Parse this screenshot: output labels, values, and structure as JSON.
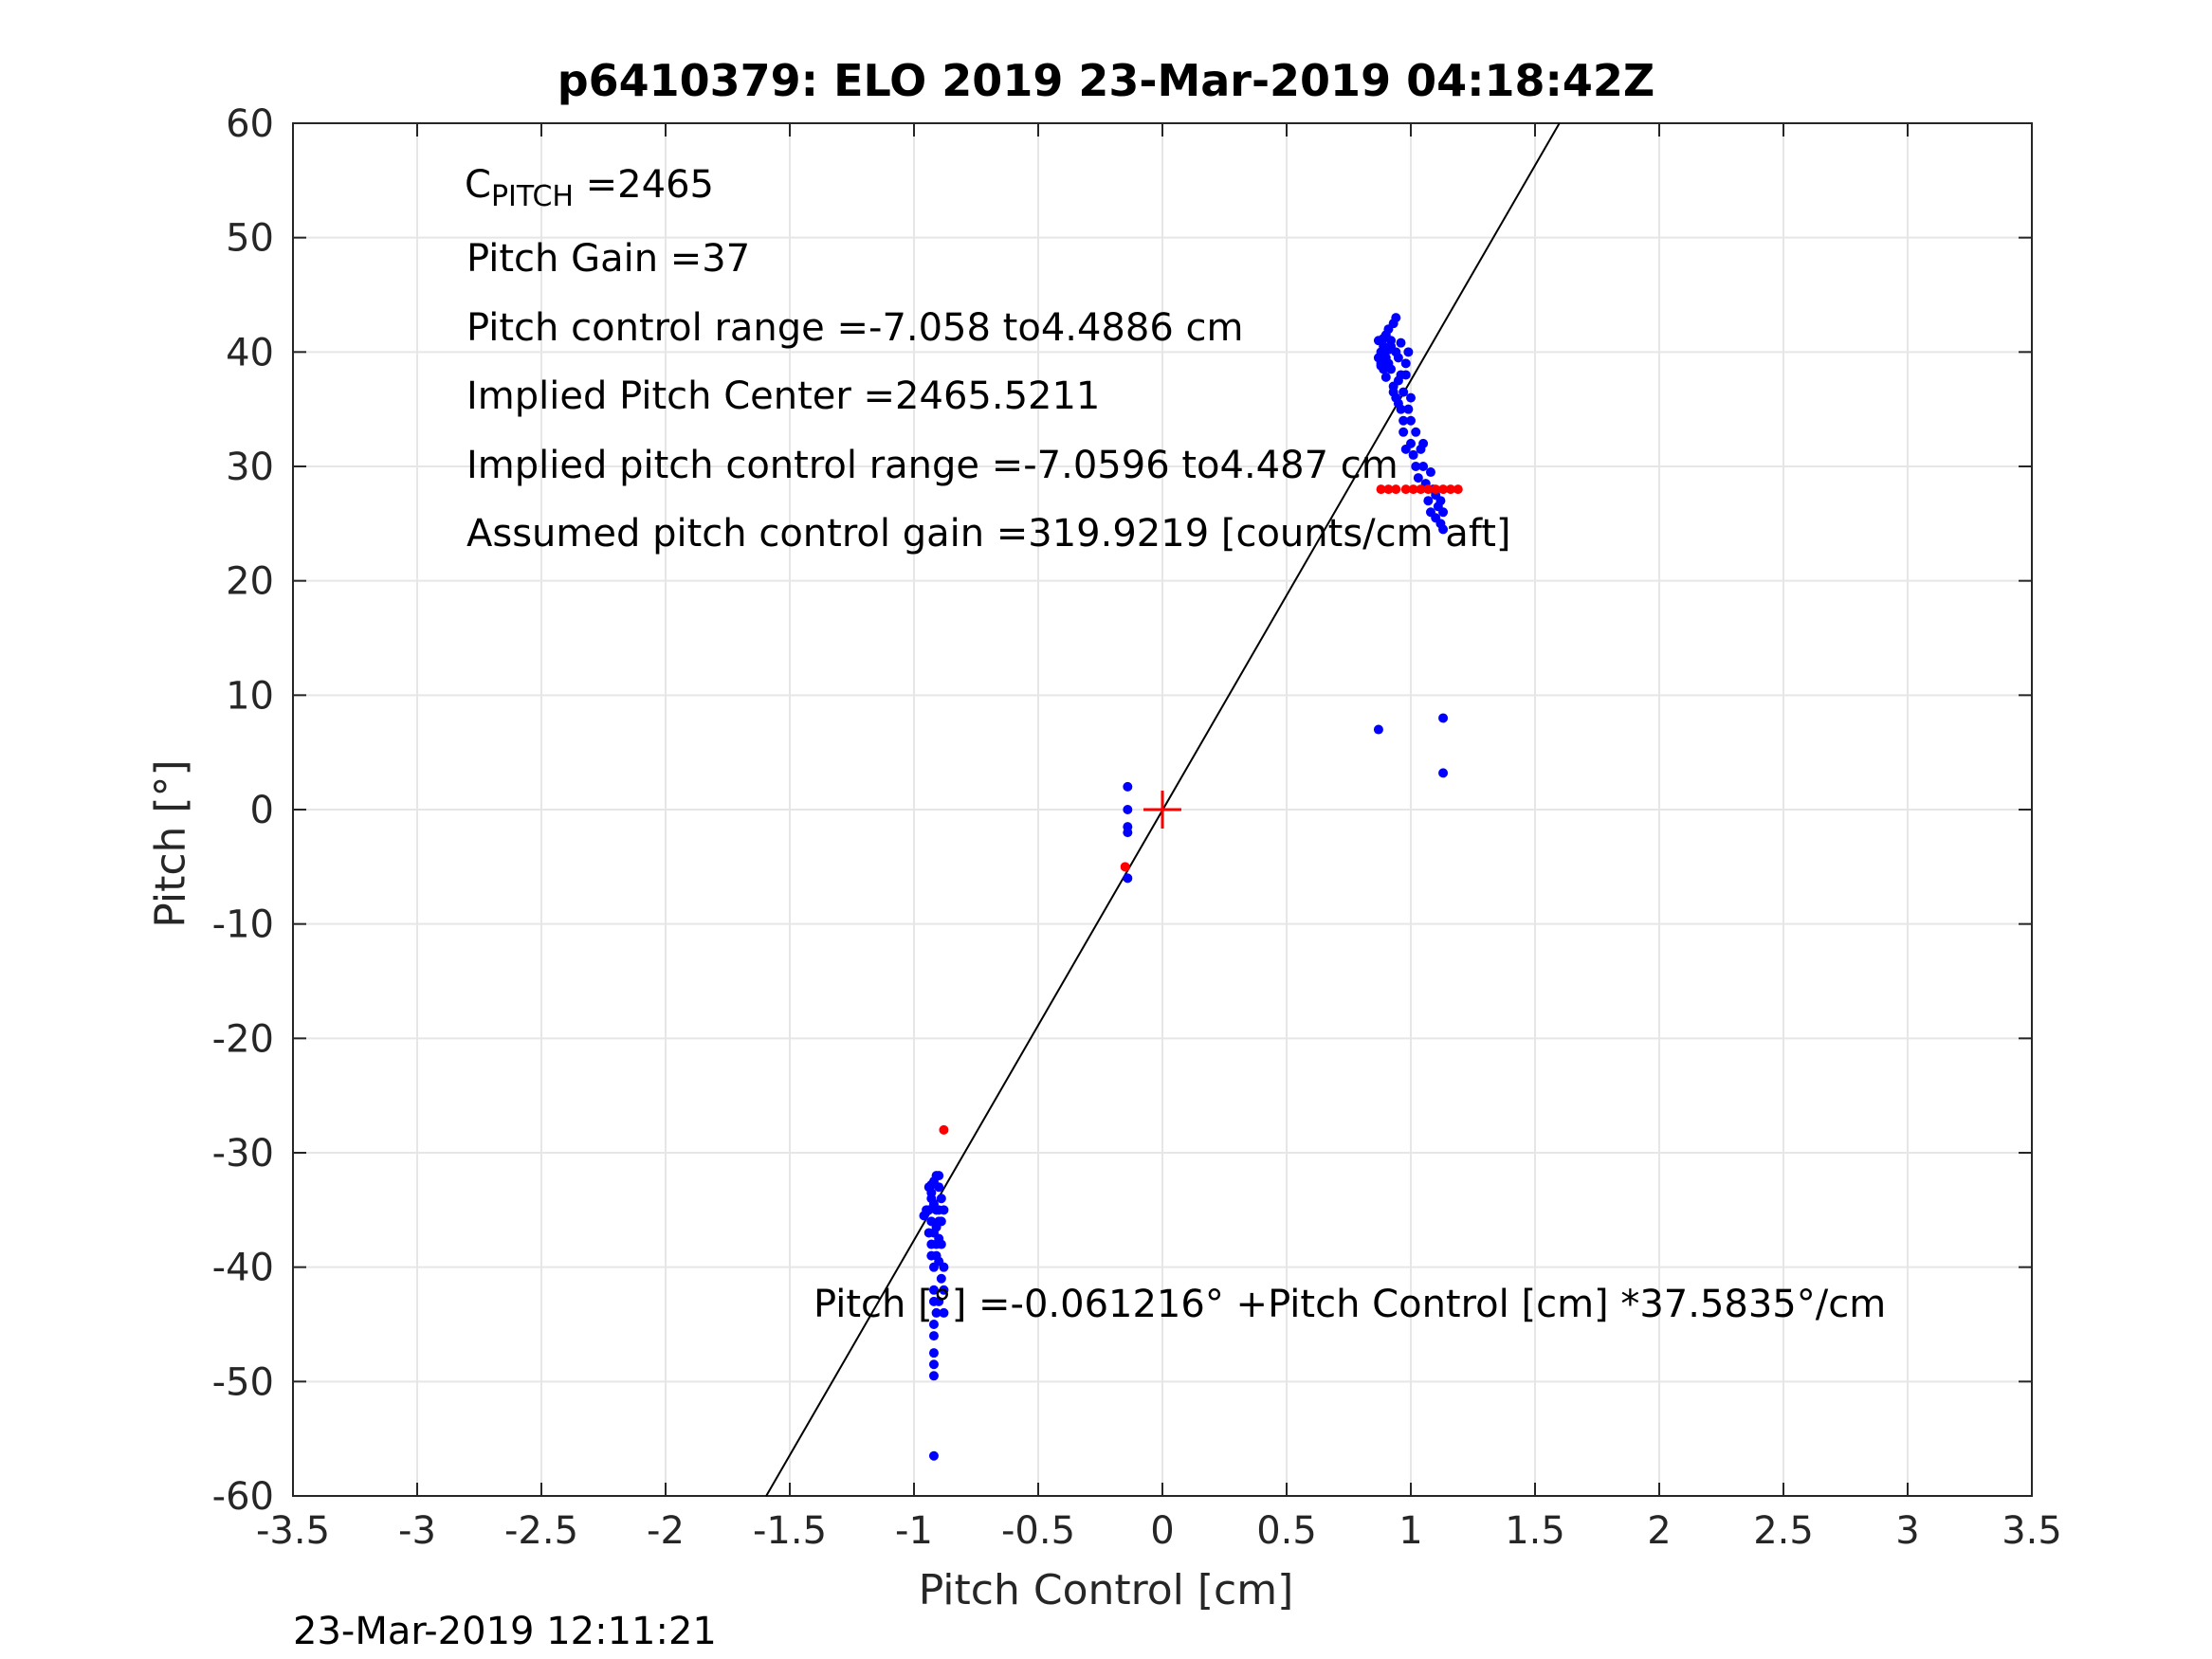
{
  "title": "p6410379: ELO 2019 23-Mar-2019 04:18:42Z",
  "xlabel": "Pitch Control [cm]",
  "ylabel": "Pitch [°]",
  "timestamp": "23-Mar-2019 12:11:21",
  "annotations": {
    "cpitch_main": "C",
    "cpitch_sub": "PITCH",
    "cpitch_value": " =2465",
    "pitch_gain": "Pitch Gain =37",
    "control_range": "Pitch control range =-7.058 to4.4886 cm",
    "implied_center": "Implied Pitch Center =2465.5211",
    "implied_range": "Implied pitch control range =-7.0596 to4.487 cm",
    "assumed_gain": "Assumed pitch control gain =319.9219 [counts/cm aft]",
    "fit_equation": "Pitch [°] =-0.061216° +Pitch Control [cm] *37.5835°/cm"
  },
  "colors": {
    "blue_points": "#0000ff",
    "red_points": "#ff0000",
    "fit_line": "#000000",
    "grid": "#e6e6e6"
  },
  "chart_data": {
    "type": "scatter",
    "xlim": [
      -3.5,
      3.5
    ],
    "ylim": [
      -60,
      60
    ],
    "grid": true,
    "xticks": [
      "-3.5",
      "-3",
      "-2.5",
      "-2",
      "-1.5",
      "-1",
      "-0.5",
      "0",
      "0.5",
      "1",
      "1.5",
      "2",
      "2.5",
      "3",
      "3.5"
    ],
    "yticks": [
      "60",
      "50",
      "40",
      "30",
      "20",
      "10",
      "0",
      "-10",
      "-20",
      "-30",
      "-40",
      "-50",
      "-60"
    ],
    "fit_line": {
      "intercept": -0.061216,
      "slope": 37.5835
    },
    "center_marker": {
      "x": 0,
      "y": 0
    },
    "series": [
      {
        "color": "#0000ff",
        "points": [
          [
            -0.94,
            -33
          ],
          [
            -0.93,
            -34
          ],
          [
            -0.92,
            -32.5
          ],
          [
            -0.91,
            -35
          ],
          [
            -0.93,
            -36
          ],
          [
            -0.92,
            -37
          ],
          [
            -0.91,
            -38
          ],
          [
            -0.93,
            -39
          ],
          [
            -0.92,
            -40
          ],
          [
            -0.94,
            -35
          ],
          [
            -0.95,
            -35
          ],
          [
            -0.96,
            -35.5
          ],
          [
            -0.9,
            -33
          ],
          [
            -0.9,
            -36
          ],
          [
            -0.89,
            -34
          ],
          [
            -0.89,
            -38
          ],
          [
            -0.88,
            -40
          ],
          [
            -0.88,
            -42
          ],
          [
            -0.88,
            -44
          ],
          [
            -0.89,
            -41
          ],
          [
            -0.9,
            -43
          ],
          [
            -0.91,
            -44
          ],
          [
            -0.92,
            -45
          ],
          [
            -0.92,
            -46
          ],
          [
            -0.92,
            -47.5
          ],
          [
            -0.92,
            -48.5
          ],
          [
            -0.92,
            -49.5
          ],
          [
            -0.91,
            -32
          ],
          [
            -0.9,
            -32
          ],
          [
            -0.93,
            -33.5
          ],
          [
            -0.92,
            -34.5
          ],
          [
            -0.91,
            -36.5
          ],
          [
            -0.9,
            -37.5
          ],
          [
            -0.93,
            -38
          ],
          [
            -0.94,
            -37
          ],
          [
            -0.92,
            -42
          ],
          [
            -0.92,
            -56.5
          ],
          [
            -0.93,
            -32.8
          ],
          [
            -0.9,
            -35
          ],
          [
            -0.91,
            -39
          ],
          [
            -0.89,
            -36
          ],
          [
            -0.88,
            -35
          ],
          [
            -0.92,
            -43
          ],
          [
            -0.9,
            -39.5
          ],
          [
            -0.14,
            2
          ],
          [
            -0.14,
            0
          ],
          [
            -0.14,
            -1.5
          ],
          [
            -0.14,
            -2
          ],
          [
            -0.14,
            -6
          ],
          [
            0.87,
            7
          ],
          [
            1.13,
            8
          ],
          [
            1.13,
            3.2
          ],
          [
            0.87,
            41
          ],
          [
            0.88,
            40
          ],
          [
            0.88,
            39
          ],
          [
            0.89,
            38.5
          ],
          [
            0.9,
            41.5
          ],
          [
            0.91,
            42
          ],
          [
            0.92,
            40.5
          ],
          [
            0.93,
            42.5
          ],
          [
            0.94,
            43
          ],
          [
            0.9,
            39.5
          ],
          [
            0.92,
            38.5
          ],
          [
            0.93,
            37
          ],
          [
            0.94,
            36
          ],
          [
            0.95,
            37.5
          ],
          [
            0.96,
            35
          ],
          [
            0.97,
            34
          ],
          [
            0.98,
            39
          ],
          [
            0.99,
            40
          ],
          [
            0.97,
            33
          ],
          [
            0.98,
            31.5
          ],
          [
            1.0,
            32
          ],
          [
            1.01,
            31
          ],
          [
            1.02,
            30
          ],
          [
            1.03,
            29
          ],
          [
            1.04,
            31.5
          ],
          [
            1.05,
            30
          ],
          [
            1.06,
            28.5
          ],
          [
            1.07,
            27
          ],
          [
            1.08,
            26
          ],
          [
            1.09,
            28
          ],
          [
            1.1,
            27.5
          ],
          [
            1.11,
            26.5
          ],
          [
            1.12,
            25
          ],
          [
            1.13,
            26
          ],
          [
            1.13,
            24.5
          ],
          [
            1.12,
            27
          ],
          [
            0.89,
            40.5
          ],
          [
            0.91,
            39
          ],
          [
            0.95,
            39.5
          ],
          [
            0.96,
            38
          ],
          [
            0.97,
            36.5
          ],
          [
            1.0,
            36
          ],
          [
            0.88,
            38.8
          ],
          [
            0.9,
            37.8
          ],
          [
            0.92,
            41
          ],
          [
            0.94,
            40
          ],
          [
            0.96,
            40.8
          ],
          [
            0.98,
            38
          ],
          [
            0.99,
            35
          ],
          [
            1.0,
            34
          ],
          [
            1.02,
            33
          ],
          [
            1.05,
            32
          ],
          [
            1.08,
            29.5
          ],
          [
            1.1,
            25.5
          ],
          [
            0.93,
            36.5
          ],
          [
            0.95,
            35.5
          ],
          [
            0.91,
            40.2
          ],
          [
            0.89,
            41.2
          ],
          [
            0.87,
            39.5
          ]
        ]
      },
      {
        "color": "#ff0000",
        "points": [
          [
            -0.88,
            -28
          ],
          [
            -0.15,
            -5
          ],
          [
            0.88,
            28
          ],
          [
            0.91,
            28
          ],
          [
            0.94,
            28
          ],
          [
            0.98,
            28
          ],
          [
            1.01,
            28
          ],
          [
            1.04,
            28
          ],
          [
            1.07,
            28
          ],
          [
            1.1,
            28
          ],
          [
            1.13,
            28
          ],
          [
            1.16,
            28
          ],
          [
            1.19,
            28
          ]
        ]
      }
    ]
  }
}
